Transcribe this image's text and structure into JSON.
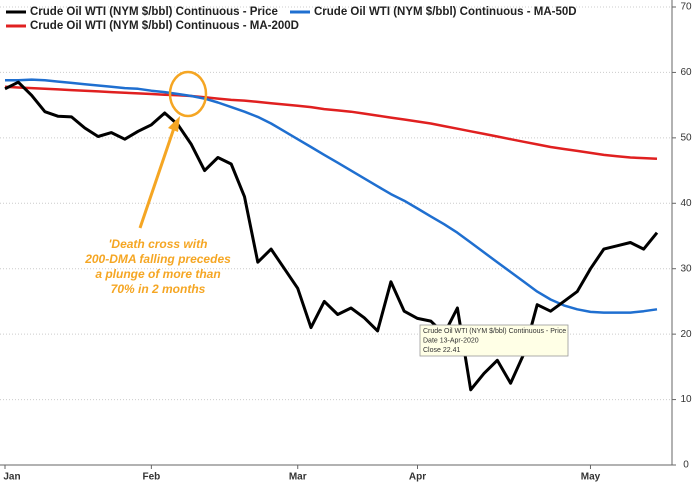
{
  "chart_data": {
    "type": "line",
    "categories": [
      "Jan",
      null,
      null,
      null,
      null,
      null,
      null,
      null,
      null,
      null,
      null,
      "Feb",
      null,
      null,
      null,
      null,
      null,
      null,
      null,
      null,
      null,
      null,
      "Mar",
      null,
      null,
      null,
      null,
      null,
      null,
      null,
      null,
      "Apr",
      null,
      null,
      null,
      null,
      null,
      null,
      null,
      null,
      null,
      null,
      null,
      null,
      "May",
      null,
      null,
      null,
      null,
      null
    ],
    "series": [
      {
        "name": "Crude Oil WTI (NYM $/bbl) Continuous - Price",
        "color": "#000000",
        "values": [
          57.5,
          58.5,
          56.5,
          54,
          53.3,
          53.2,
          51.5,
          50.2,
          50.8,
          49.8,
          51,
          52,
          53.8,
          52,
          49,
          45,
          47,
          46,
          41,
          31,
          33,
          30,
          27,
          21,
          25,
          23,
          24,
          22.5,
          20.5,
          28,
          23.5,
          22.41,
          22,
          20,
          24,
          11.5,
          14,
          16,
          12.5,
          17,
          24.5,
          23.5,
          25,
          26.5,
          30,
          33,
          33.5,
          34,
          33,
          35.5
        ]
      },
      {
        "name": "Crude Oil WTI (NYM $/bbl) Continuous - MA-50D",
        "color": "#1f6fd0",
        "values": [
          58.8,
          58.8,
          58.9,
          58.8,
          58.6,
          58.4,
          58.2,
          58,
          57.8,
          57.6,
          57.5,
          57.2,
          57,
          56.7,
          56.4,
          56,
          55.4,
          54.7,
          54,
          53.2,
          52.2,
          51,
          49.8,
          48.6,
          47.4,
          46.2,
          45,
          43.8,
          42.6,
          41.4,
          40.4,
          39.2,
          38,
          36.8,
          35.5,
          34,
          32.5,
          31,
          29.5,
          28,
          26.5,
          25.3,
          24.4,
          23.8,
          23.4,
          23.3,
          23.3,
          23.3,
          23.5,
          23.8
        ]
      },
      {
        "name": "Crude Oil WTI (NYM $/bbl) Continuous - MA-200D",
        "color": "#e02020",
        "values": [
          57.8,
          57.7,
          57.6,
          57.5,
          57.4,
          57.3,
          57.2,
          57.1,
          57,
          56.9,
          56.8,
          56.7,
          56.6,
          56.5,
          56.4,
          56.2,
          56,
          55.8,
          55.7,
          55.5,
          55.3,
          55.1,
          54.9,
          54.7,
          54.4,
          54.2,
          54,
          53.7,
          53.4,
          53.1,
          52.8,
          52.5,
          52.2,
          51.8,
          51.4,
          51,
          50.6,
          50.2,
          49.8,
          49.4,
          49,
          48.6,
          48.3,
          48,
          47.7,
          47.4,
          47.2,
          47,
          46.9,
          46.8
        ]
      }
    ],
    "ylim": [
      0,
      70
    ],
    "yticks": [
      0,
      10,
      20,
      30,
      40,
      50,
      60,
      70
    ],
    "grid": true,
    "y_axis_side": "right",
    "annotation": [
      "'Death cross with",
      "200-DMA falling precedes",
      "a plunge of more than",
      "70% in 2 months"
    ],
    "tooltip": [
      "Crude Oil WTI (NYM $/bbl) Continuous - Price",
      "Date 13-Apr-2020",
      "Close 22.41"
    ]
  }
}
